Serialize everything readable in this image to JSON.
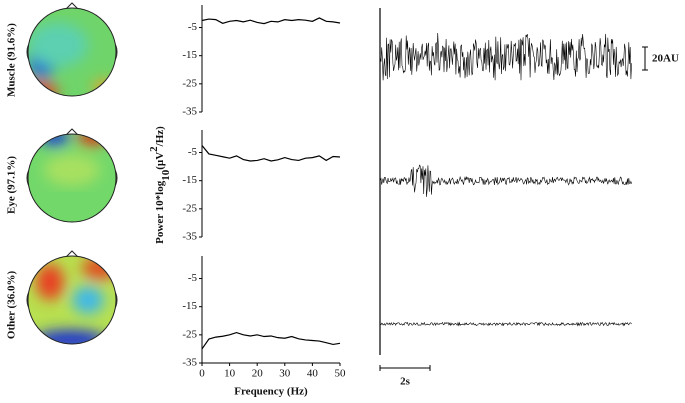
{
  "components": [
    {
      "label": "Muscle (91.6%)"
    },
    {
      "label": "Eye (97.1%)"
    },
    {
      "label": "Other (36.0%)"
    }
  ],
  "scale": {
    "amplitude": "20AU",
    "time": "2s"
  },
  "chart_data": [
    {
      "type": "line",
      "x": [
        0,
        2.5,
        5,
        7.5,
        10,
        12.5,
        15,
        17.5,
        20,
        22.5,
        25,
        27.5,
        30,
        32.5,
        35,
        37.5,
        40,
        42.5,
        45,
        47.5,
        50
      ],
      "series": [
        {
          "color": "#000000",
          "values": [
            -2.5,
            -2,
            -2.2,
            -3.5,
            -2.8,
            -2.5,
            -3,
            -2.4,
            -3.2,
            -3.6,
            -2.8,
            -3,
            -2.2,
            -2.5,
            -2.2,
            -2.4,
            -2.8,
            -1.6,
            -2.8,
            -3,
            -3.4
          ]
        }
      ],
      "xlim": [
        0,
        50
      ],
      "ylim": [
        -35,
        3
      ],
      "yticks": [
        -5,
        -15,
        -25,
        -35
      ]
    },
    {
      "type": "line",
      "ylabel": [
        "Power 10*log",
        "10",
        "(µV",
        "2",
        "/Hz)"
      ],
      "x": [
        0,
        2.5,
        5,
        7.5,
        10,
        12.5,
        15,
        17.5,
        20,
        22.5,
        25,
        27.5,
        30,
        32.5,
        35,
        37.5,
        40,
        42.5,
        45,
        47.5,
        50
      ],
      "series": [
        {
          "color": "#000000",
          "values": [
            -2.5,
            -5.5,
            -6,
            -6.5,
            -7,
            -6.2,
            -7.5,
            -8,
            -7.8,
            -7.2,
            -8,
            -7.6,
            -6.8,
            -7.5,
            -7.8,
            -7,
            -6.8,
            -6.2,
            -7.8,
            -6.4,
            -6.6
          ]
        }
      ],
      "xlim": [
        0,
        50
      ],
      "ylim": [
        -35,
        3
      ],
      "yticks": [
        -5,
        -15,
        -25,
        -35
      ]
    },
    {
      "type": "line",
      "xlabel": "Frequency (Hz)",
      "x": [
        0,
        2.5,
        5,
        7.5,
        10,
        12.5,
        15,
        17.5,
        20,
        22.5,
        25,
        27.5,
        30,
        32.5,
        35,
        37.5,
        40,
        42.5,
        45,
        47.5,
        50
      ],
      "series": [
        {
          "color": "#000000",
          "values": [
            -30,
            -26.5,
            -25.8,
            -25.5,
            -25,
            -24.2,
            -25,
            -25.4,
            -25,
            -25.6,
            -25.4,
            -26,
            -26.2,
            -25.6,
            -26.4,
            -26.8,
            -27,
            -27.2,
            -27.8,
            -28.4,
            -28
          ]
        }
      ],
      "xlim": [
        0,
        50
      ],
      "ylim": [
        -35,
        3
      ],
      "yticks": [
        -5,
        -15,
        -25,
        -35
      ],
      "xticks": [
        0,
        10,
        20,
        30,
        40,
        50
      ]
    }
  ]
}
